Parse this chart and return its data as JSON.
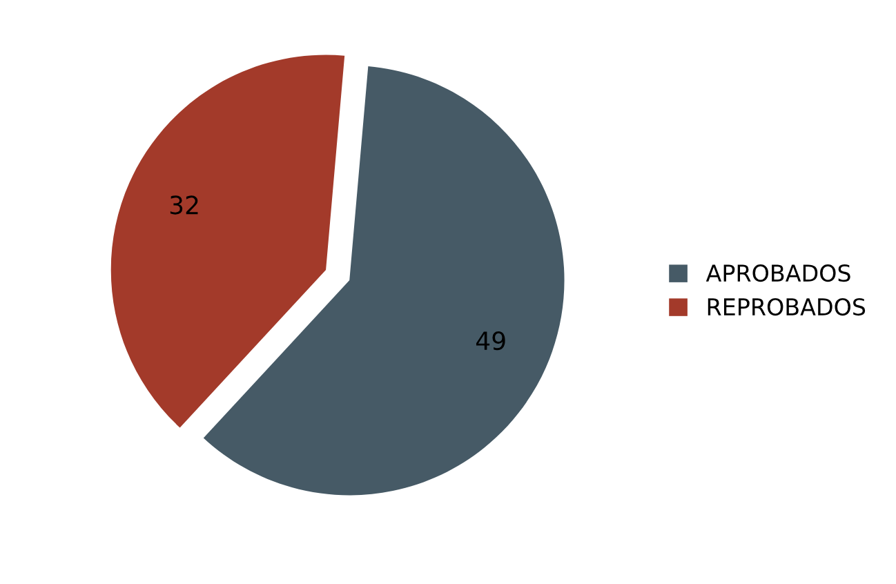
{
  "chart_data": {
    "type": "pie",
    "categories": [
      "APROBADOS",
      "REPROBADOS"
    ],
    "values": [
      49,
      32
    ],
    "colors": [
      "#465a66",
      "#a33a2a"
    ],
    "data_labels": true,
    "legend": "right"
  }
}
